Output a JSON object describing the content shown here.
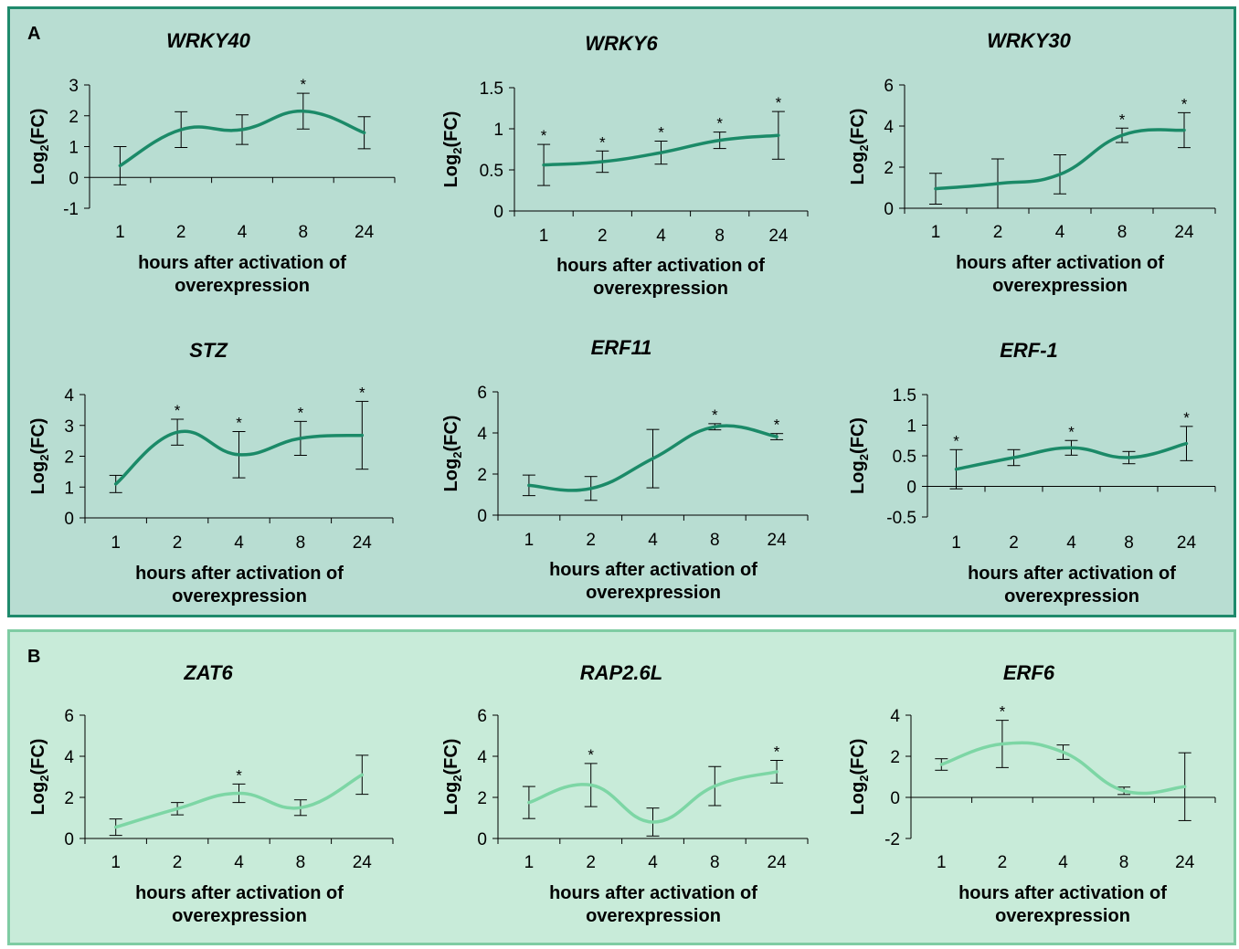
{
  "panels": [
    {
      "label": "A",
      "color": "#1b8a68"
    },
    {
      "label": "B",
      "color": "#7dd6a5"
    }
  ],
  "chart_data": [
    {
      "type": "line",
      "panel": "A",
      "title": "WRKY40",
      "ylabel": "Log2(FC)",
      "xlabel": "hours after activation of overexpression",
      "categories": [
        "1",
        "2",
        "4",
        "8",
        "24"
      ],
      "yticks": [
        -1,
        0,
        1,
        2,
        3
      ],
      "ylim": [
        -1,
        3
      ],
      "values": [
        0.38,
        1.55,
        1.55,
        2.15,
        1.45
      ],
      "errors": [
        0.62,
        0.58,
        0.48,
        0.58,
        0.52
      ],
      "significant": [
        false,
        false,
        false,
        true,
        false
      ]
    },
    {
      "type": "line",
      "panel": "A",
      "title": "WRKY6",
      "ylabel": "Log2(FC)",
      "xlabel": "hours after activation of overexpression",
      "categories": [
        "1",
        "2",
        "4",
        "8",
        "24"
      ],
      "yticks": [
        0,
        0.5,
        1,
        1.5
      ],
      "ylim": [
        0,
        1.5
      ],
      "values": [
        0.56,
        0.6,
        0.71,
        0.86,
        0.92
      ],
      "errors": [
        0.25,
        0.13,
        0.14,
        0.1,
        0.29
      ],
      "significant": [
        true,
        true,
        true,
        true,
        true
      ]
    },
    {
      "type": "line",
      "panel": "A",
      "title": "WRKY30",
      "ylabel": "Log2(FC)",
      "xlabel": "hours after activation of overexpression",
      "categories": [
        "1",
        "2",
        "4",
        "8",
        "24"
      ],
      "yticks": [
        0,
        2,
        4,
        6
      ],
      "ylim": [
        0,
        6
      ],
      "values": [
        0.95,
        1.2,
        1.65,
        3.55,
        3.8
      ],
      "errors": [
        0.75,
        1.2,
        0.95,
        0.35,
        0.85
      ],
      "significant": [
        false,
        false,
        false,
        true,
        true
      ]
    },
    {
      "type": "line",
      "panel": "A",
      "title": "STZ",
      "ylabel": "Log2(FC)",
      "xlabel": "hours after activation of overexpression",
      "categories": [
        "1",
        "2",
        "4",
        "8",
        "24"
      ],
      "yticks": [
        0,
        1,
        2,
        3,
        4
      ],
      "ylim": [
        0,
        4
      ],
      "values": [
        1.1,
        2.78,
        2.05,
        2.58,
        2.68
      ],
      "errors": [
        0.28,
        0.42,
        0.75,
        0.55,
        1.1
      ],
      "significant": [
        false,
        true,
        true,
        true,
        true
      ]
    },
    {
      "type": "line",
      "panel": "A",
      "title": "ERF11",
      "ylabel": "Log2(FC)",
      "xlabel": "hours after activation of overexpression",
      "categories": [
        "1",
        "2",
        "4",
        "8",
        "24"
      ],
      "yticks": [
        0,
        2,
        4,
        6
      ],
      "ylim": [
        0,
        6
      ],
      "values": [
        1.45,
        1.3,
        2.75,
        4.3,
        3.82
      ],
      "errors": [
        0.5,
        0.58,
        1.42,
        0.15,
        0.15
      ],
      "significant": [
        false,
        false,
        false,
        true,
        true
      ]
    },
    {
      "type": "line",
      "panel": "A",
      "title": "ERF-1",
      "ylabel": "Log2(FC)",
      "xlabel": "hours after activation of overexpression",
      "categories": [
        "1",
        "2",
        "4",
        "8",
        "24"
      ],
      "yticks": [
        -0.5,
        0,
        0.5,
        1,
        1.5
      ],
      "ylim": [
        -0.5,
        1.5
      ],
      "values": [
        0.28,
        0.47,
        0.63,
        0.47,
        0.7
      ],
      "errors": [
        0.32,
        0.13,
        0.12,
        0.1,
        0.28
      ],
      "significant": [
        true,
        false,
        true,
        false,
        true
      ]
    },
    {
      "type": "line",
      "panel": "B",
      "title": "ZAT6",
      "ylabel": "Log2(FC)",
      "xlabel": "hours after activation of overexpression",
      "categories": [
        "1",
        "2",
        "4",
        "8",
        "24"
      ],
      "yticks": [
        0,
        2,
        4,
        6
      ],
      "ylim": [
        0,
        6
      ],
      "values": [
        0.55,
        1.45,
        2.2,
        1.5,
        3.1
      ],
      "errors": [
        0.4,
        0.3,
        0.45,
        0.38,
        0.95
      ],
      "significant": [
        false,
        false,
        true,
        false,
        false
      ]
    },
    {
      "type": "line",
      "panel": "B",
      "title": "RAP2.6L",
      "ylabel": "Log2(FC)",
      "xlabel": "hours after activation of overexpression",
      "categories": [
        "1",
        "2",
        "4",
        "8",
        "24"
      ],
      "yticks": [
        0,
        2,
        4,
        6
      ],
      "ylim": [
        0,
        6
      ],
      "values": [
        1.75,
        2.6,
        0.8,
        2.55,
        3.25
      ],
      "errors": [
        0.78,
        1.05,
        0.68,
        0.95,
        0.55
      ],
      "significant": [
        false,
        true,
        false,
        false,
        true
      ]
    },
    {
      "type": "line",
      "panel": "B",
      "title": "ERF6",
      "ylabel": "Log2(FC)",
      "xlabel": "hours after activation of overexpression",
      "categories": [
        "1",
        "2",
        "4",
        "8",
        "24"
      ],
      "yticks": [
        -2,
        0,
        2,
        4
      ],
      "ylim": [
        -2,
        4
      ],
      "values": [
        1.6,
        2.6,
        2.2,
        0.32,
        0.52
      ],
      "errors": [
        0.28,
        1.15,
        0.35,
        0.18,
        1.65
      ],
      "significant": [
        false,
        true,
        false,
        false,
        false
      ]
    }
  ]
}
